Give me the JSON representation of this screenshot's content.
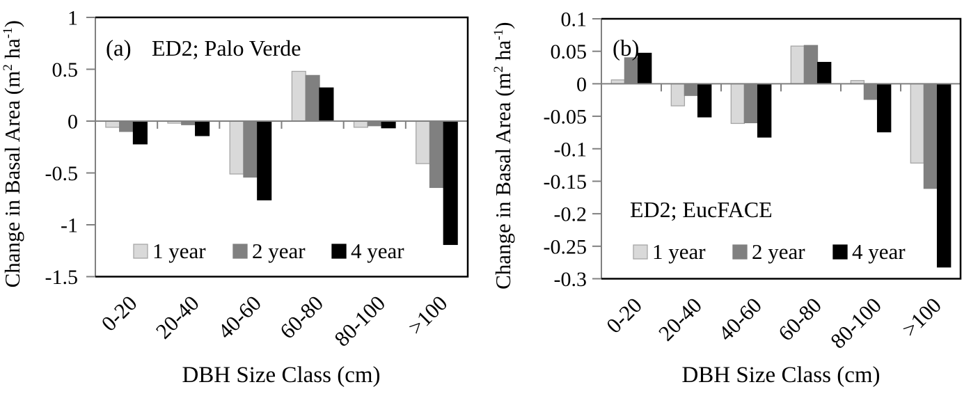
{
  "figure": {
    "xlabel": "DBH Size Class (cm)",
    "ylabel": "Change in Basal Area (m² ha⁻¹)"
  },
  "chart_data": [
    {
      "type": "bar",
      "panel_label": "(a)",
      "site_label": "ED2; Palo Verde",
      "xlabel": "DBH Size Class (cm)",
      "ylabel": "Change in Basal Area (m² ha⁻¹)",
      "categories": [
        "0-20",
        "20-40",
        "40-60",
        "60-80",
        "80-100",
        ">100"
      ],
      "series": [
        {
          "name": "1 year",
          "color": "#d9d9d9",
          "border": "#a6a6a6",
          "values": [
            -0.06,
            -0.02,
            -0.51,
            0.48,
            -0.06,
            -0.41
          ]
        },
        {
          "name": "2 year",
          "color": "#808080",
          "border": "#808080",
          "values": [
            -0.1,
            -0.035,
            -0.54,
            0.44,
            -0.045,
            -0.64
          ]
        },
        {
          "name": "4 year",
          "color": "#000000",
          "border": "#000000",
          "values": [
            -0.22,
            -0.14,
            -0.76,
            0.32,
            -0.065,
            -1.19
          ]
        }
      ],
      "ylim": [
        -1.5,
        1
      ],
      "yticks": [
        {
          "v": 1,
          "label": "1"
        },
        {
          "v": 0.5,
          "label": "0.5"
        },
        {
          "v": 0,
          "label": "0"
        },
        {
          "v": -0.5,
          "label": "-0.5"
        },
        {
          "v": -1,
          "label": "-1"
        },
        {
          "v": -1.5,
          "label": "-1.5"
        }
      ],
      "grid": false,
      "legend_position": "inside-bottom"
    },
    {
      "type": "bar",
      "panel_label": "(b)",
      "site_label": "ED2; EucFACE",
      "xlabel": "DBH Size Class (cm)",
      "ylabel": "Change in Basal Area (m² ha⁻¹)",
      "categories": [
        "0-20",
        "20-40",
        "40-60",
        "60-80",
        "80-100",
        ">100"
      ],
      "series": [
        {
          "name": "1 year",
          "color": "#d9d9d9",
          "border": "#a6a6a6",
          "values": [
            0.006,
            -0.034,
            -0.061,
            0.058,
            0.005,
            -0.122
          ]
        },
        {
          "name": "2 year",
          "color": "#808080",
          "border": "#808080",
          "values": [
            0.04,
            -0.018,
            -0.06,
            0.059,
            -0.024,
            -0.161
          ]
        },
        {
          "name": "4 year",
          "color": "#000000",
          "border": "#000000",
          "values": [
            0.047,
            -0.051,
            -0.082,
            0.033,
            -0.074,
            -0.282
          ]
        }
      ],
      "ylim": [
        -0.3,
        0.1
      ],
      "yticks": [
        {
          "v": 0.1,
          "label": "0.1"
        },
        {
          "v": 0.05,
          "label": "0.05"
        },
        {
          "v": 0,
          "label": "0"
        },
        {
          "v": -0.05,
          "label": "-0.05"
        },
        {
          "v": -0.1,
          "label": "-0.1"
        },
        {
          "v": -0.15,
          "label": "-0.15"
        },
        {
          "v": -0.2,
          "label": "-0.2"
        },
        {
          "v": -0.25,
          "label": "-0.25"
        },
        {
          "v": -0.3,
          "label": "-0.3"
        }
      ],
      "grid": false,
      "legend_position": "inside-bottom"
    }
  ]
}
